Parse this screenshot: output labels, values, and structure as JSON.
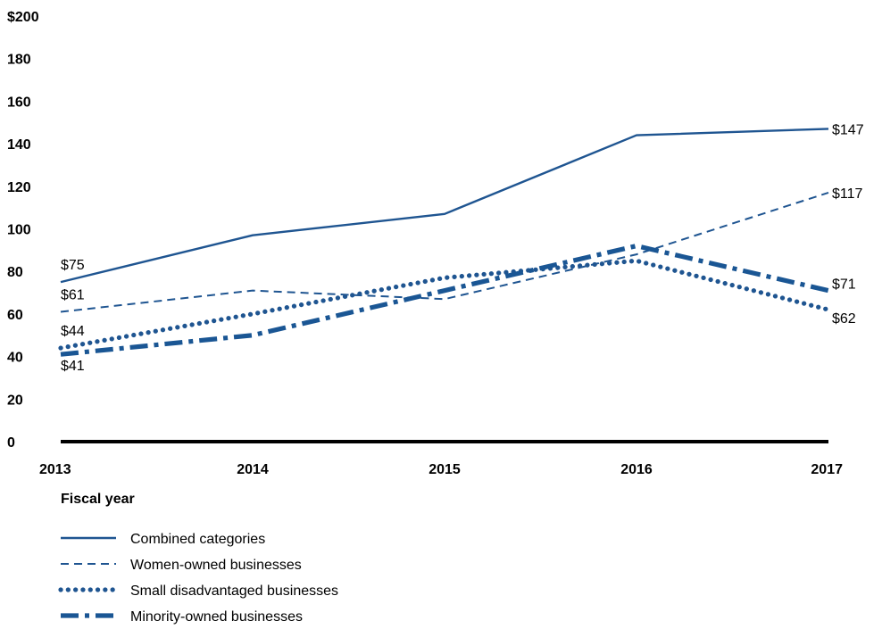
{
  "chart_data": {
    "type": "line",
    "x": [
      "2013",
      "2014",
      "2015",
      "2016",
      "2017"
    ],
    "xlabel": "Fiscal year",
    "ylabel": "",
    "ylim": [
      0,
      200
    ],
    "yticks": [
      0,
      20,
      40,
      60,
      80,
      100,
      120,
      140,
      160,
      180,
      200
    ],
    "ytick_labels": [
      "0",
      "20",
      "40",
      "60",
      "80",
      "100",
      "120",
      "140",
      "160",
      "180",
      "$200"
    ],
    "grid": false,
    "legend_position": "bottom-left",
    "series": [
      {
        "name": "Combined categories",
        "values": [
          75,
          97,
          107,
          144,
          147
        ],
        "style": "solid",
        "color": "#1f5591",
        "start_label": "$75",
        "end_label": "$147"
      },
      {
        "name": "Women-owned businesses",
        "values": [
          61,
          71,
          67,
          88,
          117
        ],
        "style": "dashed",
        "color": "#1f5591",
        "start_label": "$61",
        "end_label": "$117"
      },
      {
        "name": "Small disadvantaged businesses",
        "values": [
          44,
          60,
          77,
          85,
          62
        ],
        "style": "dotted",
        "color": "#1f5591",
        "start_label": "$44",
        "end_label": "$62"
      },
      {
        "name": "Minority-owned businesses",
        "values": [
          41,
          50,
          71,
          92,
          71
        ],
        "style": "dashdot",
        "color": "#1a5694",
        "start_label": "$41",
        "end_label": "$71"
      }
    ]
  }
}
